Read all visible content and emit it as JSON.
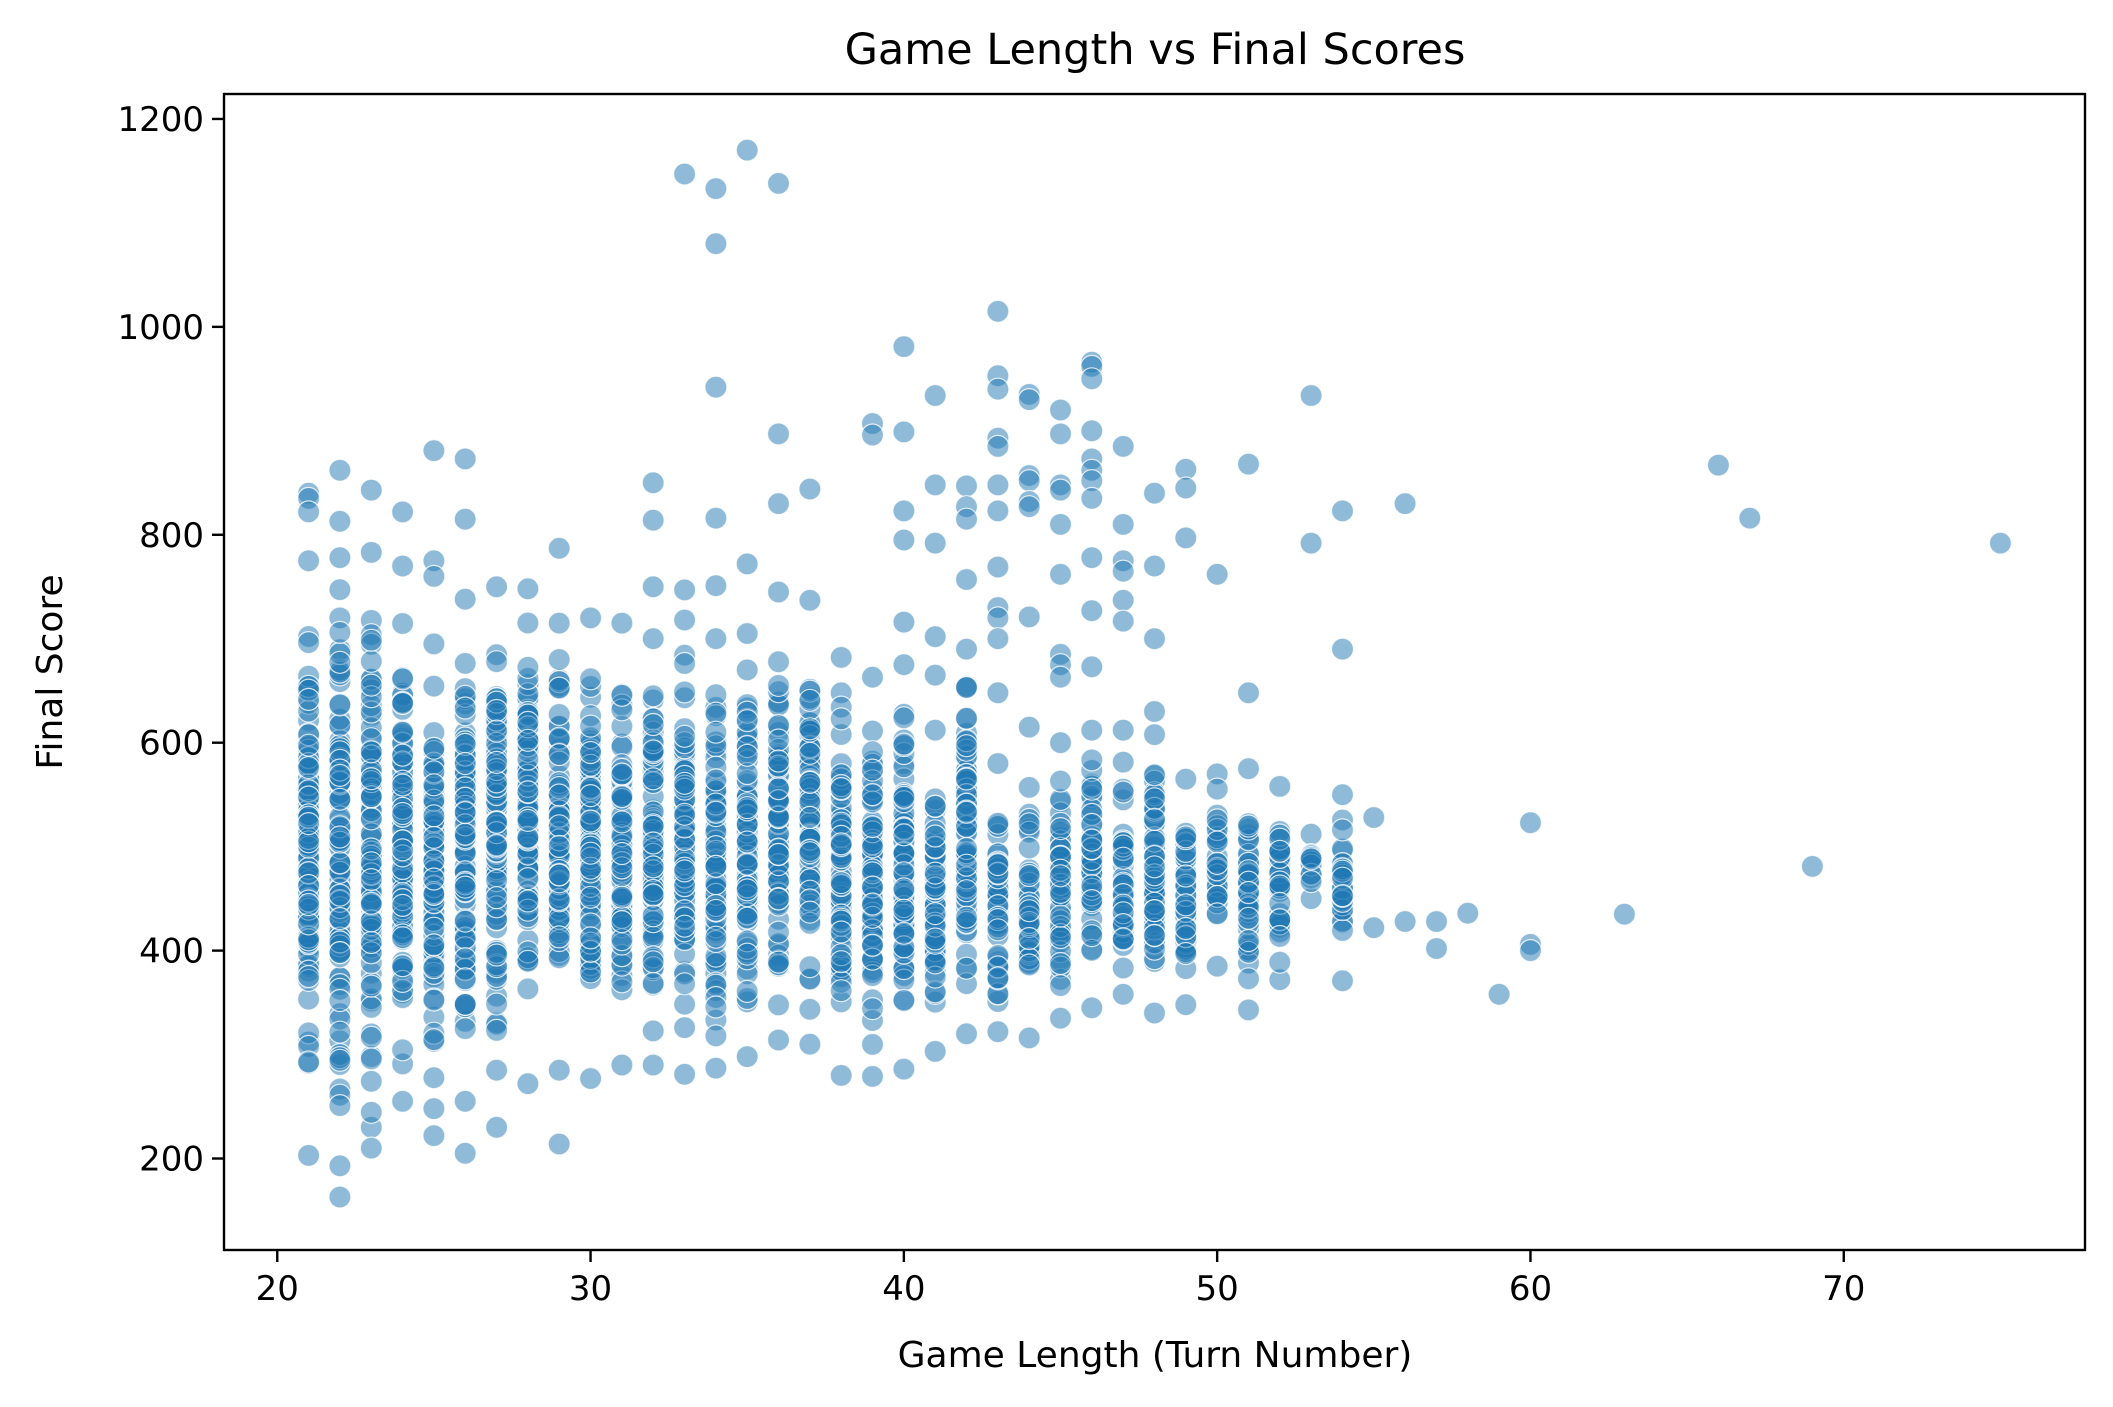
{
  "chart_data": {
    "type": "scatter",
    "title": "Game Length vs Final Scores",
    "xlabel": "Game Length (Turn Number)",
    "ylabel": "Final Score",
    "xlim": [
      18.3,
      77.7
    ],
    "ylim": [
      112,
      1224
    ],
    "xticks": [
      20,
      30,
      40,
      50,
      60,
      70
    ],
    "yticks": [
      200,
      400,
      600,
      800,
      1000,
      1200
    ],
    "xtick_labels": [
      "20",
      "30",
      "40",
      "50",
      "60",
      "70"
    ],
    "ytick_labels": [
      "200",
      "400",
      "600",
      "800",
      "1000",
      "1200"
    ],
    "grid": false,
    "legend": "none",
    "colors": {
      "marker": "#1f77b4",
      "marker_edge": "#ffffff"
    },
    "series": [
      {
        "color": "#1f77b4",
        "opacity": 0.5,
        "columns": [
          {
            "x": 21,
            "min": 203,
            "max": 775,
            "extra": [
              840,
              835,
              822
            ]
          },
          {
            "x": 22,
            "min": 193,
            "max": 778,
            "extra": [
              862,
              813,
              163
            ]
          },
          {
            "x": 23,
            "min": 230,
            "max": 783,
            "extra": [
              843,
              210
            ]
          },
          {
            "x": 24,
            "min": 255,
            "max": 770,
            "extra": [
              822
            ]
          },
          {
            "x": 25,
            "min": 248,
            "max": 695,
            "extra": [
              881,
              775,
              760,
              222
            ]
          },
          {
            "x": 26,
            "min": 255,
            "max": 738,
            "extra": [
              873,
              815,
              205
            ]
          },
          {
            "x": 27,
            "min": 285,
            "max": 750,
            "extra": [
              230
            ]
          },
          {
            "x": 28,
            "min": 272,
            "max": 748,
            "extra": []
          },
          {
            "x": 29,
            "min": 285,
            "max": 715,
            "extra": [
              787,
              214
            ]
          },
          {
            "x": 30,
            "min": 277,
            "max": 720,
            "extra": []
          },
          {
            "x": 31,
            "min": 290,
            "max": 715,
            "extra": []
          },
          {
            "x": 32,
            "min": 290,
            "max": 700,
            "extra": [
              850,
              814,
              750
            ]
          },
          {
            "x": 33,
            "min": 281,
            "max": 718,
            "extra": [
              1147,
              747
            ]
          },
          {
            "x": 34,
            "min": 287,
            "max": 700,
            "extra": [
              1133,
              1080,
              942,
              816,
              751
            ]
          },
          {
            "x": 35,
            "min": 298,
            "max": 705,
            "extra": [
              1170,
              772
            ]
          },
          {
            "x": 36,
            "min": 314,
            "max": 745,
            "extra": [
              1138,
              897,
              830
            ]
          },
          {
            "x": 37,
            "min": 310,
            "max": 737,
            "extra": [
              844
            ]
          },
          {
            "x": 38,
            "min": 280,
            "max": 682,
            "extra": []
          },
          {
            "x": 39,
            "min": 279,
            "max": 663,
            "extra": [
              907,
              896
            ]
          },
          {
            "x": 40,
            "min": 286,
            "max": 675,
            "extra": [
              981,
              899,
              823,
              795,
              716
            ]
          },
          {
            "x": 41,
            "min": 303,
            "max": 612,
            "extra": [
              934,
              848,
              792,
              702,
              665
            ]
          },
          {
            "x": 42,
            "min": 320,
            "max": 690,
            "extra": [
              847,
              827,
              815,
              757
            ]
          },
          {
            "x": 43,
            "min": 322,
            "max": 580,
            "extra": [
              1015,
              953,
              940,
              893,
              885,
              848,
              823,
              769,
              730,
              720,
              700,
              648
            ]
          },
          {
            "x": 44,
            "min": 316,
            "max": 557,
            "extra": [
              935,
              930,
              857,
              852,
              832,
              827,
              721,
              615
            ]
          },
          {
            "x": 45,
            "min": 335,
            "max": 600,
            "extra": [
              920,
              897,
              848,
              843,
              810,
              762,
              685,
              675,
              663
            ]
          },
          {
            "x": 46,
            "min": 345,
            "max": 612,
            "extra": [
              966,
              962,
              950,
              900,
              873,
              862,
              852,
              835,
              778,
              727,
              673
            ]
          },
          {
            "x": 47,
            "min": 358,
            "max": 612,
            "extra": [
              885,
              810,
              775,
              765,
              737,
              717
            ]
          },
          {
            "x": 48,
            "min": 340,
            "max": 630,
            "extra": [
              840,
              770,
              700
            ]
          },
          {
            "x": 49,
            "min": 348,
            "max": 565,
            "extra": [
              863,
              845,
              797
            ]
          },
          {
            "x": 50,
            "min": 385,
            "max": 570,
            "extra": [
              762
            ]
          },
          {
            "x": 51,
            "min": 343,
            "max": 575,
            "extra": [
              868,
              648
            ]
          },
          {
            "x": 52,
            "min": 372,
            "max": 558,
            "extra": []
          },
          {
            "x": 53,
            "min": 450,
            "max": 512,
            "extra": [
              934,
              792
            ]
          },
          {
            "x": 54,
            "min": 371,
            "max": 550,
            "extra": [
              823,
              690
            ]
          }
        ],
        "points": [
          [
            55,
            528
          ],
          [
            55,
            422
          ],
          [
            56,
            428
          ],
          [
            56,
            830
          ],
          [
            57,
            428
          ],
          [
            57,
            402
          ],
          [
            58,
            436
          ],
          [
            59,
            358
          ],
          [
            60,
            523
          ],
          [
            60,
            406
          ],
          [
            60,
            400
          ],
          [
            63,
            435
          ],
          [
            66,
            867
          ],
          [
            67,
            816
          ],
          [
            69,
            481
          ],
          [
            75,
            792
          ]
        ]
      }
    ]
  }
}
